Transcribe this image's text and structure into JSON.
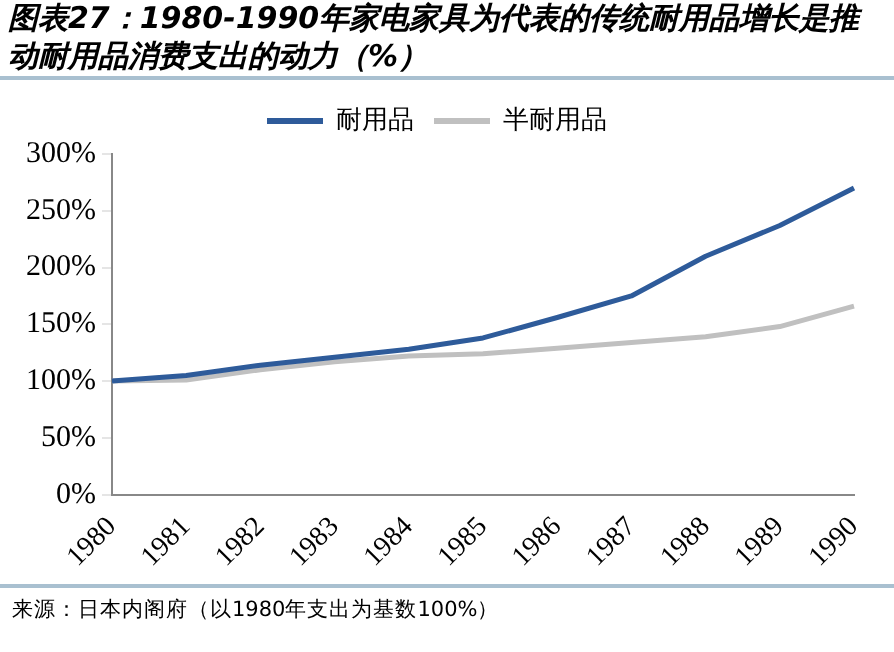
{
  "chart_data": {
    "type": "line",
    "title": "图表27：1980-1990年家电家具为代表的传统耐用品增长是推动耐用品消费支出的动力（%）",
    "categories": [
      "1980",
      "1981",
      "1982",
      "1983",
      "1984",
      "1985",
      "1986",
      "1987",
      "1988",
      "1989",
      "1990"
    ],
    "series": [
      {
        "name": "耐用品",
        "color": "#2e5b9a",
        "values": [
          100,
          105,
          114,
          121,
          128,
          138,
          156,
          175,
          210,
          237,
          270
        ]
      },
      {
        "name": "半耐用品",
        "color": "#c0c0c0",
        "values": [
          100,
          101,
          110,
          117,
          122,
          124,
          129,
          134,
          139,
          148,
          166
        ]
      }
    ],
    "ylim": [
      0,
      300
    ],
    "yticks": [
      {
        "value": 0,
        "label": "0%"
      },
      {
        "value": 50,
        "label": "50%"
      },
      {
        "value": 100,
        "label": "100%"
      },
      {
        "value": 150,
        "label": "150%"
      },
      {
        "value": 200,
        "label": "200%"
      },
      {
        "value": 250,
        "label": "250%"
      },
      {
        "value": 300,
        "label": "300%"
      }
    ],
    "grid": false,
    "legend": "top",
    "marker": "none",
    "line_style": "solid",
    "annotations": [
      "来源：日本内阁府（以1980年支出为基数100%）"
    ]
  }
}
